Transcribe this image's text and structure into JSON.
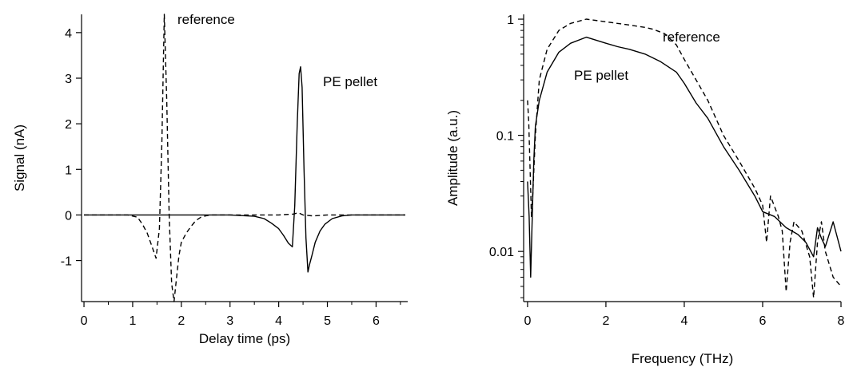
{
  "chart_data": [
    {
      "type": "line",
      "xlabel": "Delay time (ps)",
      "ylabel": "Signal (nA)",
      "xlim": [
        -0.05,
        6.65
      ],
      "ylim": [
        -1.9,
        4.4
      ],
      "x_ticks": [
        0,
        1,
        2,
        3,
        4,
        5,
        6
      ],
      "y_ticks": [
        -1,
        0,
        1,
        2,
        3,
        4
      ],
      "x_tick_labels": [
        "0",
        "1",
        "2",
        "3",
        "4",
        "5",
        "6"
      ],
      "y_tick_labels": [
        "-1",
        "0",
        "1",
        "2",
        "3",
        "4"
      ],
      "grid": false,
      "series": [
        {
          "name": "reference",
          "style": "dashed",
          "x": [
            0.0,
            0.5,
            0.9,
            1.1,
            1.2,
            1.3,
            1.4,
            1.48,
            1.55,
            1.6,
            1.65,
            1.7,
            1.75,
            1.8,
            1.85,
            1.9,
            1.95,
            2.0,
            2.1,
            2.2,
            2.3,
            2.4,
            2.5,
            2.6,
            2.8,
            3.0,
            3.5,
            4.0,
            4.3,
            4.4,
            4.5,
            4.7,
            5.0,
            5.5,
            6.0,
            6.6
          ],
          "y": [
            0.0,
            0.0,
            0.0,
            -0.05,
            -0.2,
            -0.4,
            -0.7,
            -0.95,
            -0.3,
            1.6,
            4.4,
            2.5,
            0.0,
            -1.5,
            -1.9,
            -1.4,
            -0.9,
            -0.6,
            -0.4,
            -0.25,
            -0.12,
            -0.05,
            -0.02,
            0.0,
            0.0,
            0.0,
            0.0,
            0.0,
            0.02,
            0.05,
            0.0,
            -0.02,
            0.0,
            0.0,
            0.0,
            0.0
          ],
          "annotation": "reference"
        },
        {
          "name": "PE pellet",
          "style": "solid",
          "x": [
            0.0,
            0.5,
            1.0,
            1.5,
            2.0,
            2.5,
            3.0,
            3.5,
            3.7,
            3.85,
            4.0,
            4.1,
            4.2,
            4.28,
            4.33,
            4.38,
            4.42,
            4.45,
            4.48,
            4.52,
            4.56,
            4.6,
            4.63,
            4.68,
            4.75,
            4.85,
            4.95,
            5.1,
            5.3,
            5.5,
            6.0,
            6.6
          ],
          "y": [
            0.0,
            0.0,
            0.0,
            0.0,
            0.0,
            0.0,
            0.0,
            -0.03,
            -0.08,
            -0.18,
            -0.3,
            -0.45,
            -0.62,
            -0.7,
            0.2,
            2.0,
            3.1,
            3.25,
            2.8,
            1.0,
            -0.5,
            -1.25,
            -1.1,
            -0.9,
            -0.6,
            -0.35,
            -0.2,
            -0.08,
            -0.02,
            0.0,
            0.0,
            0.0
          ],
          "annotation": "PE pellet"
        }
      ]
    },
    {
      "type": "line",
      "xlabel": "Frequency (THz)",
      "ylabel": "Amplitude (a.u.)",
      "xlim": [
        -0.1,
        8.0
      ],
      "ylim": [
        0.0037,
        1.1
      ],
      "y_scale": "log",
      "x_ticks": [
        0,
        2,
        4,
        6,
        8
      ],
      "y_ticks": [
        0.01,
        0.1,
        1
      ],
      "x_tick_labels": [
        "0",
        "2",
        "4",
        "6",
        "8"
      ],
      "y_tick_labels": [
        "0.01",
        "0.1",
        "1"
      ],
      "grid": false,
      "series": [
        {
          "name": "reference",
          "style": "dashed",
          "x": [
            0.0,
            0.03,
            0.06,
            0.1,
            0.14,
            0.2,
            0.3,
            0.5,
            0.8,
            1.1,
            1.5,
            2.0,
            2.5,
            3.0,
            3.2,
            3.5,
            3.8,
            4.0,
            4.3,
            4.6,
            5.0,
            5.4,
            5.8,
            6.0,
            6.1,
            6.2,
            6.4,
            6.5,
            6.6,
            6.7,
            6.8,
            7.0,
            7.2,
            7.3,
            7.4,
            7.5,
            7.6,
            7.8,
            8.0
          ],
          "y": [
            0.2,
            0.13,
            0.06,
            0.02,
            0.035,
            0.1,
            0.3,
            0.55,
            0.8,
            0.92,
            1.0,
            0.95,
            0.9,
            0.85,
            0.82,
            0.75,
            0.6,
            0.45,
            0.3,
            0.2,
            0.1,
            0.06,
            0.035,
            0.025,
            0.012,
            0.03,
            0.02,
            0.015,
            0.0045,
            0.012,
            0.018,
            0.015,
            0.009,
            0.004,
            0.012,
            0.018,
            0.01,
            0.006,
            0.005
          ],
          "annotation": "reference"
        },
        {
          "name": "PE pellet",
          "style": "solid",
          "x": [
            0.0,
            0.04,
            0.08,
            0.12,
            0.16,
            0.2,
            0.3,
            0.5,
            0.8,
            1.1,
            1.5,
            2.0,
            2.3,
            2.6,
            3.0,
            3.4,
            3.8,
            4.0,
            4.3,
            4.6,
            5.0,
            5.4,
            5.8,
            6.0,
            6.3,
            6.6,
            6.9,
            7.1,
            7.3,
            7.4,
            7.5,
            7.6,
            7.8,
            8.0
          ],
          "y": [
            0.04,
            0.02,
            0.006,
            0.02,
            0.06,
            0.12,
            0.2,
            0.35,
            0.52,
            0.62,
            0.7,
            0.62,
            0.58,
            0.55,
            0.5,
            0.43,
            0.35,
            0.28,
            0.19,
            0.14,
            0.08,
            0.05,
            0.03,
            0.022,
            0.02,
            0.016,
            0.014,
            0.012,
            0.009,
            0.016,
            0.013,
            0.011,
            0.018,
            0.01
          ],
          "annotation": "PE pellet"
        }
      ]
    }
  ]
}
